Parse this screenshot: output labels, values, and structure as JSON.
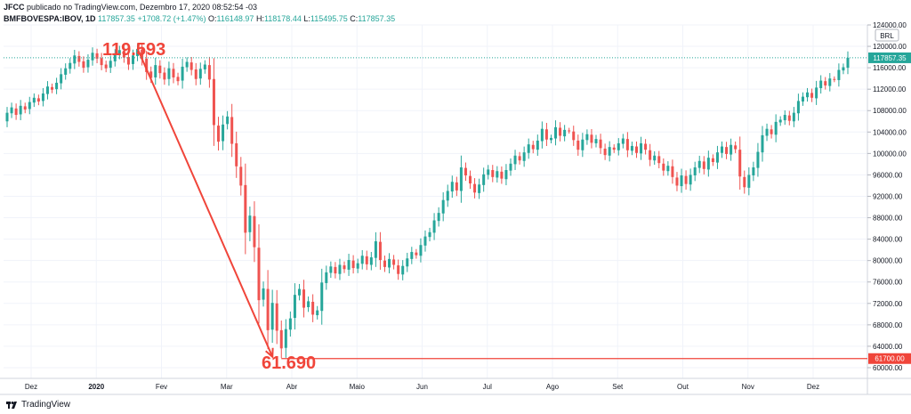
{
  "header": {
    "publisher_user": "JFCC",
    "publisher_text": "publicado no TradingView.com, Dezembro 17, 2020 08:52:54 -03",
    "symbol": "BMFBOVESPA:IBOV, 1D",
    "last": "117857.35",
    "change": "+1708.72 (+1.47%)",
    "o_label": "O:",
    "o_value": "116148.97",
    "h_label": "H:",
    "h_value": "118178.44",
    "l_label": "L:",
    "l_value": "115495.75",
    "c_label": "C:",
    "c_value": "117857.35"
  },
  "footer": {
    "brand": "TradingView"
  },
  "colors": {
    "up": "#26a69a",
    "down": "#ef5350",
    "annotation": "#f0453a",
    "grid": "#f0f3fa"
  },
  "chart_data": {
    "type": "candlestick",
    "currency": "BRL",
    "ylim": [
      58000,
      124000
    ],
    "y_ticks": [
      "60000.00",
      "64000.00",
      "68000.00",
      "72000.00",
      "76000.00",
      "80000.00",
      "84000.00",
      "88000.00",
      "92000.00",
      "96000.00",
      "100000.00",
      "104000.00",
      "108000.00",
      "112000.00",
      "116000.00",
      "120000.00",
      "124000.00"
    ],
    "x_ticks": [
      "Dez",
      "2020",
      "Fev",
      "Mar",
      "Abr",
      "Maio",
      "Jun",
      "Jul",
      "Ago",
      "Set",
      "Out",
      "Nov",
      "Dez"
    ],
    "last_price_label": "117857.35",
    "support_label": "61700.00",
    "support_value": 61700,
    "annotations": {
      "high_text": "119.593",
      "low_text": "61.690"
    },
    "series": [
      {
        "o": 106000,
        "c": 107600
      },
      {
        "o": 107500,
        "c": 108600
      },
      {
        "o": 108400,
        "c": 107200
      },
      {
        "o": 107300,
        "c": 108900
      },
      {
        "o": 108800,
        "c": 108200
      },
      {
        "o": 108300,
        "c": 109600
      },
      {
        "o": 109500,
        "c": 110400
      },
      {
        "o": 110300,
        "c": 109700
      },
      {
        "o": 109800,
        "c": 111200
      },
      {
        "o": 111100,
        "c": 112500
      },
      {
        "o": 112400,
        "c": 111900
      },
      {
        "o": 112000,
        "c": 113200
      },
      {
        "o": 113100,
        "c": 114800
      },
      {
        "o": 114700,
        "c": 115900
      },
      {
        "o": 115800,
        "c": 116900
      },
      {
        "o": 116800,
        "c": 118300
      },
      {
        "o": 118200,
        "c": 117100
      },
      {
        "o": 117200,
        "c": 116000
      },
      {
        "o": 116100,
        "c": 117500
      },
      {
        "o": 117400,
        "c": 118800
      },
      {
        "o": 118700,
        "c": 117700
      },
      {
        "o": 117800,
        "c": 116500
      },
      {
        "o": 116600,
        "c": 115900
      },
      {
        "o": 116000,
        "c": 117300
      },
      {
        "o": 117200,
        "c": 118500
      },
      {
        "o": 118400,
        "c": 119300
      },
      {
        "o": 119200,
        "c": 117900
      },
      {
        "o": 118000,
        "c": 116600
      },
      {
        "o": 116700,
        "c": 118300
      },
      {
        "o": 118200,
        "c": 119500
      },
      {
        "o": 119400,
        "c": 117600
      },
      {
        "o": 117700,
        "c": 115200
      },
      {
        "o": 115300,
        "c": 114100
      },
      {
        "o": 114200,
        "c": 116500
      },
      {
        "o": 116400,
        "c": 115000
      },
      {
        "o": 115100,
        "c": 113800
      },
      {
        "o": 113900,
        "c": 115900
      },
      {
        "o": 115800,
        "c": 114200
      },
      {
        "o": 114300,
        "c": 113500
      },
      {
        "o": 113600,
        "c": 116200
      },
      {
        "o": 116100,
        "c": 117100
      },
      {
        "o": 117000,
        "c": 115600
      },
      {
        "o": 115700,
        "c": 113900
      },
      {
        "o": 114000,
        "c": 115800
      },
      {
        "o": 115700,
        "c": 116600
      },
      {
        "o": 116500,
        "c": 113800
      },
      {
        "o": 113900,
        "c": 105300
      },
      {
        "o": 105200,
        "c": 102200
      },
      {
        "o": 102300,
        "c": 105400
      },
      {
        "o": 105500,
        "c": 106900
      },
      {
        "o": 106800,
        "c": 101800
      },
      {
        "o": 101900,
        "c": 97600
      },
      {
        "o": 97500,
        "c": 94000
      },
      {
        "o": 94100,
        "c": 85200
      },
      {
        "o": 85300,
        "c": 88400
      },
      {
        "o": 88300,
        "c": 82500
      },
      {
        "o": 82400,
        "c": 72600
      },
      {
        "o": 72700,
        "c": 74800
      },
      {
        "o": 74700,
        "c": 67000
      },
      {
        "o": 67100,
        "c": 72100
      },
      {
        "o": 72000,
        "c": 66900
      },
      {
        "o": 67000,
        "c": 63600
      },
      {
        "o": 63700,
        "c": 67200
      },
      {
        "o": 67100,
        "c": 69200
      },
      {
        "o": 69300,
        "c": 73600
      },
      {
        "o": 73500,
        "c": 74700
      },
      {
        "o": 74600,
        "c": 71200
      },
      {
        "o": 71300,
        "c": 72400
      },
      {
        "o": 72300,
        "c": 69900
      },
      {
        "o": 69800,
        "c": 70700
      },
      {
        "o": 70600,
        "c": 75900
      },
      {
        "o": 75800,
        "c": 77800
      },
      {
        "o": 77700,
        "c": 78900
      },
      {
        "o": 78800,
        "c": 77600
      },
      {
        "o": 77500,
        "c": 79200
      },
      {
        "o": 79100,
        "c": 78400
      },
      {
        "o": 78300,
        "c": 80100
      },
      {
        "o": 80000,
        "c": 78600
      },
      {
        "o": 78500,
        "c": 79500
      },
      {
        "o": 79400,
        "c": 80900
      },
      {
        "o": 80800,
        "c": 79300
      },
      {
        "o": 79200,
        "c": 80600
      },
      {
        "o": 80500,
        "c": 83600
      },
      {
        "o": 83500,
        "c": 80100
      },
      {
        "o": 80000,
        "c": 78800
      },
      {
        "o": 78700,
        "c": 80300
      },
      {
        "o": 80200,
        "c": 79200
      },
      {
        "o": 79100,
        "c": 77500
      },
      {
        "o": 77400,
        "c": 79000
      },
      {
        "o": 78900,
        "c": 80400
      },
      {
        "o": 80300,
        "c": 81600
      },
      {
        "o": 81500,
        "c": 81000
      },
      {
        "o": 80900,
        "c": 82900
      },
      {
        "o": 82800,
        "c": 84500
      },
      {
        "o": 84400,
        "c": 85300
      },
      {
        "o": 85200,
        "c": 87500
      },
      {
        "o": 87400,
        "c": 88900
      },
      {
        "o": 88800,
        "c": 91300
      },
      {
        "o": 91200,
        "c": 93000
      },
      {
        "o": 92900,
        "c": 94700
      },
      {
        "o": 94600,
        "c": 93100
      },
      {
        "o": 93000,
        "c": 97400
      },
      {
        "o": 97300,
        "c": 95900
      },
      {
        "o": 95800,
        "c": 94400
      },
      {
        "o": 94300,
        "c": 92700
      },
      {
        "o": 92600,
        "c": 94200
      },
      {
        "o": 94100,
        "c": 96100
      },
      {
        "o": 96000,
        "c": 97000
      },
      {
        "o": 96900,
        "c": 95600
      },
      {
        "o": 95500,
        "c": 96700
      },
      {
        "o": 96600,
        "c": 95300
      },
      {
        "o": 95200,
        "c": 96900
      },
      {
        "o": 96800,
        "c": 98100
      },
      {
        "o": 98000,
        "c": 99600
      },
      {
        "o": 99500,
        "c": 98700
      },
      {
        "o": 98600,
        "c": 100200
      },
      {
        "o": 100100,
        "c": 101700
      },
      {
        "o": 101600,
        "c": 100800
      },
      {
        "o": 100700,
        "c": 102400
      },
      {
        "o": 102300,
        "c": 104600
      },
      {
        "o": 104500,
        "c": 102600
      },
      {
        "o": 102500,
        "c": 102900
      },
      {
        "o": 102800,
        "c": 104900
      },
      {
        "o": 104800,
        "c": 103300
      },
      {
        "o": 103200,
        "c": 104400
      },
      {
        "o": 104300,
        "c": 104200
      },
      {
        "o": 104100,
        "c": 102500
      },
      {
        "o": 102400,
        "c": 100700
      },
      {
        "o": 100600,
        "c": 102600
      },
      {
        "o": 102500,
        "c": 103600
      },
      {
        "o": 103500,
        "c": 102000
      },
      {
        "o": 101900,
        "c": 102700
      },
      {
        "o": 102600,
        "c": 101000
      },
      {
        "o": 100900,
        "c": 99700
      },
      {
        "o": 99600,
        "c": 101200
      },
      {
        "o": 101100,
        "c": 100700
      },
      {
        "o": 100600,
        "c": 101900
      },
      {
        "o": 101800,
        "c": 102800
      },
      {
        "o": 102700,
        "c": 100600
      },
      {
        "o": 100500,
        "c": 101400
      },
      {
        "o": 101300,
        "c": 100100
      },
      {
        "o": 100000,
        "c": 101900
      },
      {
        "o": 101800,
        "c": 100700
      },
      {
        "o": 100600,
        "c": 98800
      },
      {
        "o": 98700,
        "c": 99600
      },
      {
        "o": 99500,
        "c": 98200
      },
      {
        "o": 98100,
        "c": 96800
      },
      {
        "o": 96700,
        "c": 97700
      },
      {
        "o": 97600,
        "c": 95600
      },
      {
        "o": 95500,
        "c": 94000
      },
      {
        "o": 93900,
        "c": 95900
      },
      {
        "o": 95800,
        "c": 94300
      },
      {
        "o": 94200,
        "c": 96000
      },
      {
        "o": 95900,
        "c": 97400
      },
      {
        "o": 97300,
        "c": 98600
      },
      {
        "o": 98500,
        "c": 97100
      },
      {
        "o": 97000,
        "c": 99200
      },
      {
        "o": 99100,
        "c": 98400
      },
      {
        "o": 98300,
        "c": 100200
      },
      {
        "o": 100100,
        "c": 101300
      },
      {
        "o": 101200,
        "c": 99900
      },
      {
        "o": 99800,
        "c": 101600
      },
      {
        "o": 101500,
        "c": 100800
      },
      {
        "o": 100700,
        "c": 95700
      },
      {
        "o": 95600,
        "c": 93700
      },
      {
        "o": 93600,
        "c": 96000
      },
      {
        "o": 95900,
        "c": 97400
      },
      {
        "o": 97300,
        "c": 100300
      },
      {
        "o": 100200,
        "c": 103400
      },
      {
        "o": 103300,
        "c": 104600
      },
      {
        "o": 104500,
        "c": 103600
      },
      {
        "o": 103500,
        "c": 105900
      },
      {
        "o": 105800,
        "c": 106300
      },
      {
        "o": 106200,
        "c": 107200
      },
      {
        "o": 107100,
        "c": 106100
      },
      {
        "o": 106000,
        "c": 107600
      },
      {
        "o": 107500,
        "c": 109800
      },
      {
        "o": 109700,
        "c": 110600
      },
      {
        "o": 110500,
        "c": 111400
      },
      {
        "o": 111300,
        "c": 110400
      },
      {
        "o": 110300,
        "c": 112300
      },
      {
        "o": 112200,
        "c": 113600
      },
      {
        "o": 113500,
        "c": 112700
      },
      {
        "o": 112600,
        "c": 114000
      },
      {
        "o": 113900,
        "c": 113800
      },
      {
        "o": 113700,
        "c": 115600
      },
      {
        "o": 115500,
        "c": 116100
      },
      {
        "o": 116000,
        "c": 117860
      }
    ]
  }
}
